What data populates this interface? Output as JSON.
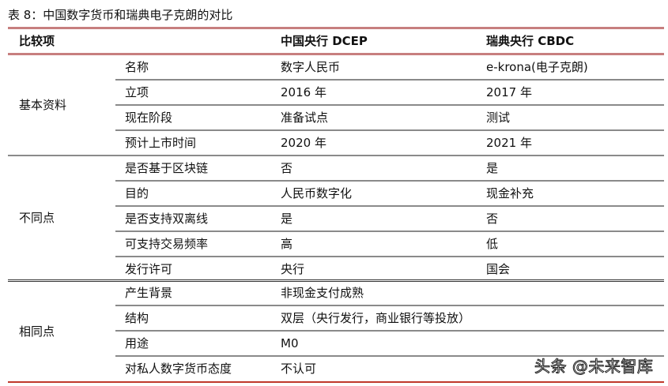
{
  "title": "表 8：中国数字货币和瑞典电子克朗的对比",
  "header": [
    "比较项",
    "",
    "中国央行 DCEP",
    "瑞典央行 CBDC"
  ],
  "groups": [
    {
      "label": "基本资料",
      "rows": [
        [
          "名称",
          "数字人民币",
          "e-krona(电子克朗)"
        ],
        [
          "立项",
          "2016 年",
          "2017 年"
        ],
        [
          "现在阶段",
          "准备试点",
          "测试"
        ],
        [
          "预计上市时间",
          "2020 年",
          "2021 年"
        ]
      ]
    },
    {
      "label": "不同点",
      "rows": [
        [
          "是否基于区块链",
          "否",
          "是"
        ],
        [
          "目的",
          "人民币数字化",
          "现金补充"
        ],
        [
          "是否支持双离线",
          "是",
          "否"
        ],
        [
          "可支持交易频率",
          "高",
          "低"
        ],
        [
          "发行许可",
          "央行",
          "国会"
        ]
      ]
    },
    {
      "label": "相同点",
      "rows": [
        [
          "产生背景",
          "非现金支付成熟"
        ],
        [
          "结构",
          "双层（央行发行，商业银行等投放）"
        ],
        [
          "用途",
          "M0"
        ],
        [
          "对私人数字货币态度",
          "不认可"
        ]
      ]
    }
  ],
  "watermark": "头条 @未来智库"
}
